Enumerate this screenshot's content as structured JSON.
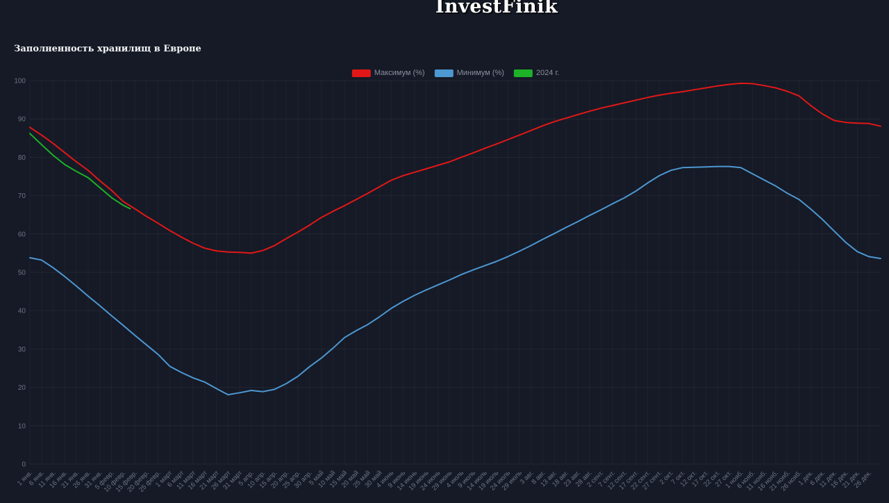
{
  "page": {
    "title": "InvestFinik",
    "background": "#151a26"
  },
  "chart_data": {
    "type": "line",
    "title": "Заполненность хранилищ в Европе",
    "xlabel": "",
    "ylabel": "",
    "ylim": [
      0,
      100
    ],
    "yticks": [
      0,
      10,
      20,
      30,
      40,
      50,
      60,
      70,
      80,
      90,
      100
    ],
    "grid": true,
    "legend_position": "top-center",
    "x_unit": "day_of_year",
    "x_range_days": [
      1,
      366
    ],
    "x_tick_days": [
      1,
      6,
      11,
      16,
      21,
      26,
      31,
      36,
      41,
      46,
      51,
      56,
      61,
      66,
      71,
      76,
      81,
      86,
      91,
      96,
      101,
      106,
      111,
      116,
      121,
      126,
      131,
      136,
      141,
      146,
      151,
      156,
      161,
      166,
      171,
      176,
      181,
      186,
      191,
      196,
      201,
      206,
      211,
      216,
      221,
      226,
      231,
      236,
      241,
      246,
      251,
      256,
      261,
      266,
      271,
      276,
      281,
      286,
      291,
      296,
      301,
      306,
      311,
      316,
      321,
      326,
      331,
      336,
      341,
      346,
      351,
      356,
      361
    ],
    "x_tick_labels": [
      "1 янв.",
      "6 янв.",
      "11 янв.",
      "16 янв.",
      "21 янв.",
      "26 янв.",
      "31 янв.",
      "5 февр.",
      "10 февр.",
      "15 февр.",
      "20 февр.",
      "25 февр.",
      "1 март",
      "6 март",
      "11 март",
      "16 март",
      "21 март",
      "26 март",
      "31 март",
      "5 апр.",
      "10 апр.",
      "15 апр.",
      "20 апр.",
      "25 апр.",
      "30 апр.",
      "5 май",
      "10 май",
      "15 май",
      "20 май",
      "25 май",
      "30 май",
      "4 июнь",
      "9 июнь",
      "14 июнь",
      "19 июнь",
      "24 июнь",
      "29 июнь",
      "4 июль",
      "9 июль",
      "14 июль",
      "19 июль",
      "24 июль",
      "29 июль",
      "3 авг.",
      "8 авг.",
      "13 авг.",
      "18 авг.",
      "23 авг.",
      "28 авг.",
      "2 сент.",
      "7 сент.",
      "12 сент.",
      "17 сент.",
      "22 сент.",
      "27 сент.",
      "2 окт.",
      "7 окт.",
      "12 окт.",
      "17 окт.",
      "22 окт.",
      "27 окт.",
      "1 нояб.",
      "6 нояб.",
      "11 нояб.",
      "16 нояб.",
      "21 нояб.",
      "26 нояб.",
      "1 дек.",
      "6 дек.",
      "11 дек.",
      "16 дек.",
      "21 дек.",
      "26 дек."
    ],
    "series": [
      {
        "name": "Максимум (%)",
        "slug": "maximum",
        "color": "#e31717",
        "days": [
          1,
          6,
          11,
          16,
          21,
          26,
          31,
          36,
          41,
          46,
          51,
          56,
          61,
          66,
          71,
          76,
          81,
          86,
          91,
          96,
          101,
          106,
          111,
          116,
          121,
          126,
          131,
          136,
          141,
          146,
          151,
          156,
          161,
          166,
          171,
          176,
          181,
          186,
          191,
          196,
          201,
          206,
          211,
          216,
          221,
          226,
          231,
          236,
          241,
          246,
          251,
          256,
          261,
          266,
          271,
          276,
          281,
          286,
          291,
          296,
          301,
          306,
          311,
          316,
          321,
          326,
          331,
          336,
          341,
          346,
          351,
          356,
          361,
          366
        ],
        "values": [
          87.8,
          85.8,
          83.6,
          81.2,
          78.8,
          76.6,
          73.9,
          71.4,
          68.5,
          66.6,
          64.6,
          62.8,
          60.9,
          59.2,
          57.6,
          56.3,
          55.6,
          55.3,
          55.2,
          55.0,
          55.7,
          57.0,
          58.8,
          60.5,
          62.3,
          64.3,
          65.9,
          67.4,
          69.0,
          70.6,
          72.3,
          74.0,
          75.2,
          76.1,
          77.0,
          77.9,
          78.8,
          80.0,
          81.1,
          82.3,
          83.4,
          84.6,
          85.8,
          87.0,
          88.2,
          89.3,
          90.2,
          91.1,
          92.0,
          92.8,
          93.5,
          94.2,
          94.9,
          95.6,
          96.2,
          96.7,
          97.1,
          97.6,
          98.1,
          98.6,
          99.0,
          99.3,
          99.2,
          98.7,
          98.1,
          97.2,
          96.0,
          93.5,
          91.3,
          89.6,
          89.1,
          88.9,
          88.8,
          88.1
        ]
      },
      {
        "name": "Минимум (%)",
        "slug": "minimum",
        "color": "#4d97d2",
        "days": [
          1,
          6,
          11,
          16,
          21,
          26,
          31,
          36,
          41,
          46,
          51,
          56,
          61,
          66,
          71,
          76,
          81,
          86,
          91,
          96,
          101,
          106,
          111,
          116,
          121,
          126,
          131,
          136,
          141,
          146,
          151,
          156,
          161,
          166,
          171,
          176,
          181,
          186,
          191,
          196,
          201,
          206,
          211,
          216,
          221,
          226,
          231,
          236,
          241,
          246,
          251,
          256,
          261,
          266,
          271,
          276,
          281,
          286,
          291,
          296,
          301,
          306,
          311,
          316,
          321,
          326,
          331,
          336,
          341,
          346,
          351,
          356,
          361,
          366
        ],
        "values": [
          53.8,
          53.2,
          51.2,
          48.9,
          46.4,
          43.8,
          41.3,
          38.7,
          36.2,
          33.6,
          31.1,
          28.6,
          25.5,
          23.9,
          22.5,
          21.4,
          19.7,
          18.1,
          18.6,
          19.2,
          18.9,
          19.5,
          21.0,
          22.9,
          25.4,
          27.6,
          30.2,
          33.0,
          34.8,
          36.4,
          38.4,
          40.6,
          42.4,
          44.0,
          45.4,
          46.7,
          48.0,
          49.4,
          50.6,
          51.7,
          52.8,
          54.1,
          55.5,
          57.0,
          58.6,
          60.1,
          61.7,
          63.2,
          64.8,
          66.3,
          67.9,
          69.4,
          71.2,
          73.3,
          75.2,
          76.6,
          77.3,
          77.4,
          77.5,
          77.6,
          77.6,
          77.3,
          75.7,
          74.1,
          72.5,
          70.6,
          69.0,
          66.5,
          63.8,
          60.8,
          57.8,
          55.4,
          54.1,
          53.6
        ]
      },
      {
        "name": "2024 г.",
        "slug": "year-2024",
        "color": "#1db228",
        "days": [
          1,
          6,
          11,
          16,
          21,
          26,
          31,
          36,
          41,
          44
        ],
        "values": [
          86.2,
          83.3,
          80.5,
          78.1,
          76.3,
          74.7,
          72.1,
          69.5,
          67.5,
          66.6
        ]
      }
    ]
  }
}
